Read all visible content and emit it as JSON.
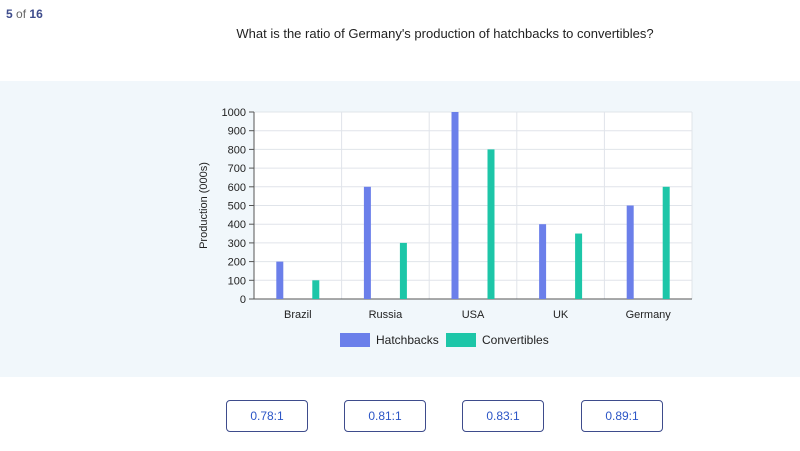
{
  "progress": {
    "current": "5",
    "of": "of",
    "total": "16"
  },
  "question": "What is the ratio of Germany's production of hatchbacks to convertibles?",
  "colors": {
    "hatchbacks": "#6b7fea",
    "convertibles": "#1dc6a8",
    "band": "#f1f7fb",
    "grid": "#e0e4ea"
  },
  "chart_data": {
    "type": "bar",
    "categories": [
      "Brazil",
      "Russia",
      "USA",
      "UK",
      "Germany"
    ],
    "series": [
      {
        "name": "Hatchbacks",
        "values": [
          200,
          600,
          1000,
          400,
          500
        ]
      },
      {
        "name": "Convertibles",
        "values": [
          100,
          300,
          800,
          350,
          600
        ]
      }
    ],
    "ylabel": "Production (000s)",
    "ylim": [
      0,
      1000
    ],
    "yticks": [
      0,
      100,
      200,
      300,
      400,
      500,
      600,
      700,
      800,
      900,
      1000
    ],
    "grid": true,
    "legend": "bottom"
  },
  "answers": [
    "0.78:1",
    "0.81:1",
    "0.83:1",
    "0.89:1"
  ]
}
